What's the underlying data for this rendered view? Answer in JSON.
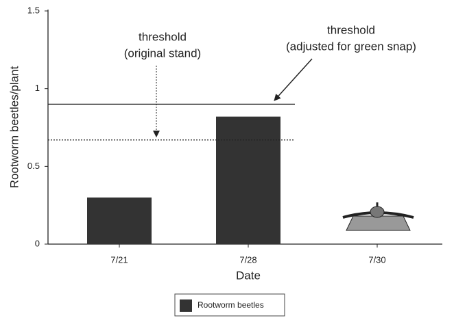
{
  "chart_data": {
    "type": "bar",
    "y_label": "Rootworm beetles/plant",
    "x_label": "Date",
    "categories": [
      "7/21",
      "7/28",
      "7/30"
    ],
    "series": [
      {
        "name": "Rootworm beetles",
        "color": "#333333",
        "values": [
          0.3,
          0.82,
          null
        ]
      }
    ],
    "ylim": [
      0,
      1.5
    ],
    "yticks": [
      0,
      0.5,
      1,
      1.5
    ],
    "thresholds": [
      {
        "value": 0.9,
        "style": "solid",
        "label": [
          "threshold",
          "(adjusted for green snap)"
        ]
      },
      {
        "value": 0.67,
        "style": "dotted",
        "label": [
          "threshold",
          "(original stand)"
        ]
      }
    ],
    "legend": "bottom"
  }
}
